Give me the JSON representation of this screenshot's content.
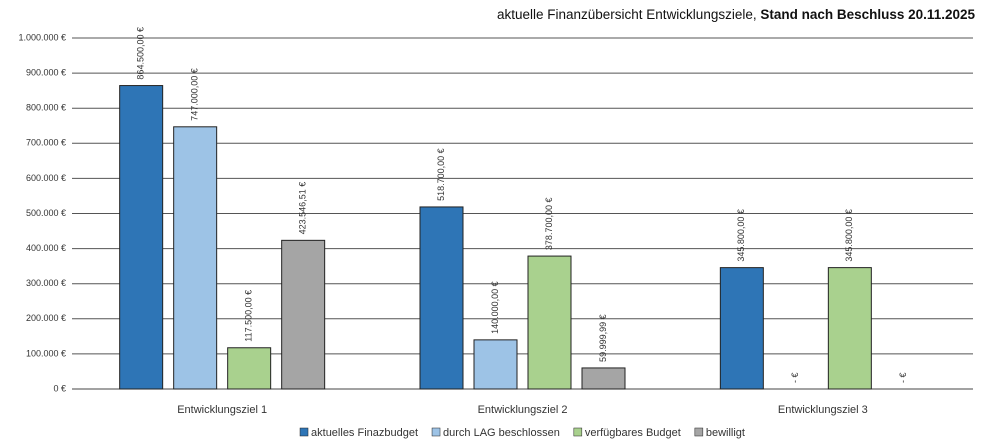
{
  "chart_data": {
    "type": "bar",
    "title": "aktuelle Finanzübersicht Entwicklungsziele,",
    "title_emphasis": "Stand nach Beschluss 20.11.2025",
    "categories": [
      "Entwicklungsziel 1",
      "Entwicklungsziel 2",
      "Entwicklungsziel 3"
    ],
    "series": [
      {
        "name": "aktuelles Finazbudget",
        "color": "#2e75b6",
        "values": [
          864500,
          518700,
          345800
        ],
        "value_labels": [
          "864.500,00 €",
          "518.700,00 €",
          "345.800,00 €"
        ]
      },
      {
        "name": "durch LAG beschlossen",
        "color": "#9dc3e6",
        "values": [
          747000,
          140000,
          0
        ],
        "value_labels": [
          "747.000,00 €",
          "140.000,00 €",
          "-   €"
        ]
      },
      {
        "name": "verfügbares Budget",
        "color": "#a9d18e",
        "values": [
          117500,
          378700,
          345800
        ],
        "value_labels": [
          "117.500,00 €",
          "378.700,00 €",
          "345.800,00 €"
        ]
      },
      {
        "name": "bewilligt",
        "color": "#a5a5a5",
        "values": [
          423546.51,
          59999.99,
          0
        ],
        "value_labels": [
          "423.546,51 €",
          "59.999,99 €",
          "-   €"
        ]
      }
    ],
    "ylim": [
      0,
      1000000
    ],
    "yticks": [
      {
        "value": 0,
        "label": "0 €"
      },
      {
        "value": 100000,
        "label": "100.000 €"
      },
      {
        "value": 200000,
        "label": "200.000 €"
      },
      {
        "value": 300000,
        "label": "300.000 €"
      },
      {
        "value": 400000,
        "label": "400.000 €"
      },
      {
        "value": 500000,
        "label": "500.000 €"
      },
      {
        "value": 600000,
        "label": "600.000 €"
      },
      {
        "value": 700000,
        "label": "700.000 €"
      },
      {
        "value": 800000,
        "label": "800.000 €"
      },
      {
        "value": 900000,
        "label": "900.000 €"
      },
      {
        "value": 1000000,
        "label": "1.000.000 €"
      }
    ],
    "grid": true,
    "legend": "bottom"
  }
}
